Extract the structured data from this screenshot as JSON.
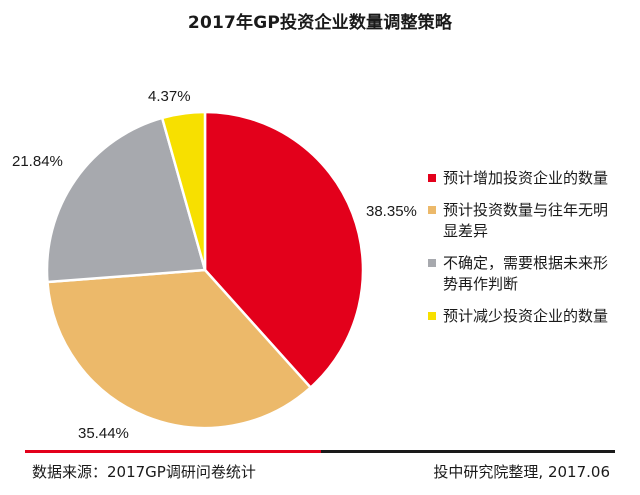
{
  "chart_data": {
    "type": "pie",
    "title": "2017年GP投资企业数量调整策略",
    "slices": [
      {
        "label": "预计增加投资企业的数量",
        "value": 38.35,
        "display": "38.35%",
        "color": "#e3001b"
      },
      {
        "label": "预计投资数量与往年无明显差异",
        "value": 35.44,
        "display": "35.44%",
        "color": "#ecb96a"
      },
      {
        "label": "不确定，需要根据未来形势再作判断",
        "value": 21.84,
        "display": "21.84%",
        "color": "#a7a9ae"
      },
      {
        "label": "预计减少投资企业的数量",
        "value": 4.37,
        "display": "4.37%",
        "color": "#f7e000"
      }
    ],
    "legend_position": "right"
  },
  "footer": {
    "source": "数据来源：2017GP调研问卷统计",
    "credit": "投中研究院整理, 2017.06"
  }
}
